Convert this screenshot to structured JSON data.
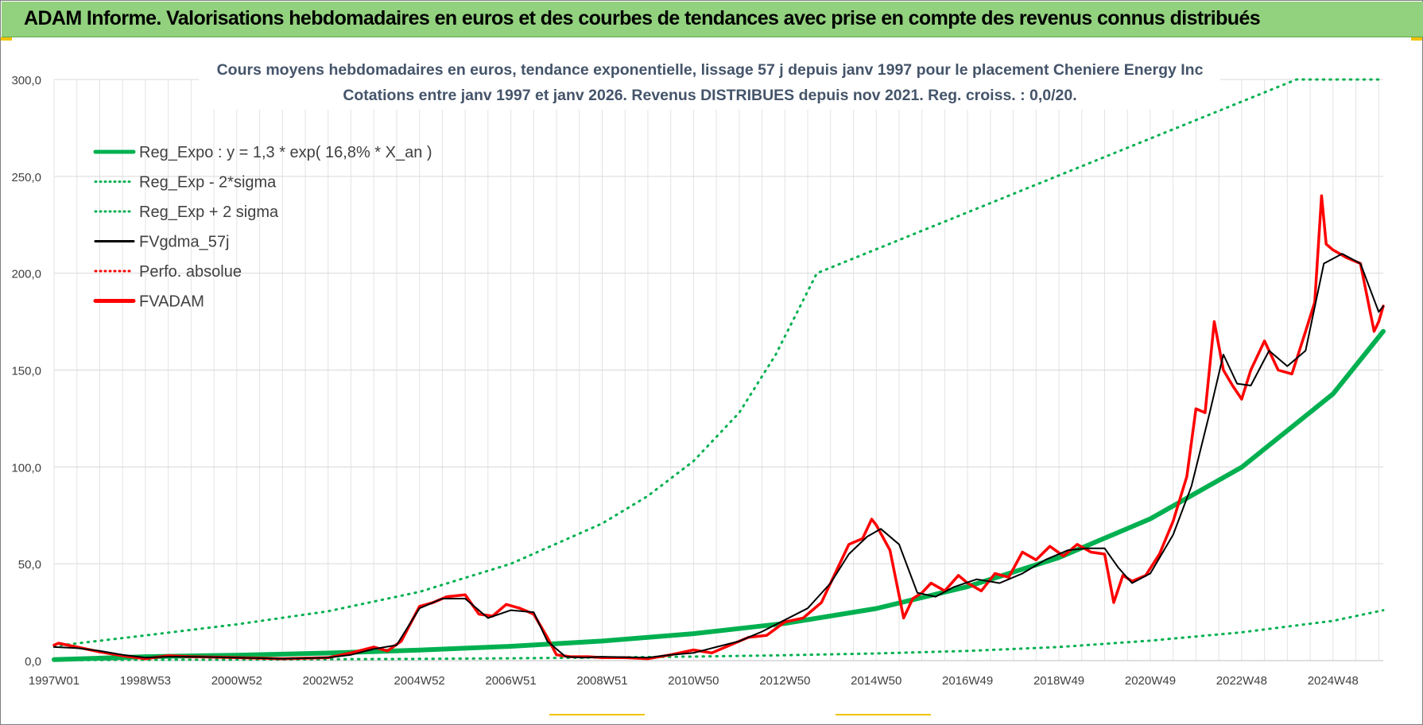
{
  "banner": {
    "title": "ADAM Informe. Valorisations hebdomadaires en euros et des courbes de tendances avec prise en compte des revenus connus distribués"
  },
  "colors": {
    "banner_bg": "#92d17e",
    "reg_green": "#00b050",
    "fv_black": "#000000",
    "fvadam_red": "#ff0000",
    "grid": "#d9d9d9"
  },
  "chart_data": {
    "type": "line",
    "title": "Cours moyens hebdomadaires en euros, tendance exponentielle, lissage 57 j depuis janv 1997 pour le placement Cheniere Energy Inc",
    "subtitle": "Cotations entre janv 1997 et janv 2026. Revenus DISTRIBUES depuis nov 2021. Reg. croiss. : 0,0/20.",
    "xlabel": "",
    "ylabel": "",
    "xlim": [
      1997.0,
      2026.1
    ],
    "ylim": [
      0,
      300
    ],
    "y_ticks": [
      "0,0",
      "50,0",
      "100,0",
      "150,0",
      "200,0",
      "250,0",
      "300,0"
    ],
    "x_ticks": [
      {
        "label": "1997W01",
        "t": 1997.0
      },
      {
        "label": "1998W53",
        "t": 1999.0
      },
      {
        "label": "2000W52",
        "t": 2001.0
      },
      {
        "label": "2002W52",
        "t": 2003.0
      },
      {
        "label": "2004W52",
        "t": 2005.0
      },
      {
        "label": "2006W51",
        "t": 2007.0
      },
      {
        "label": "2008W51",
        "t": 2009.0
      },
      {
        "label": "2010W50",
        "t": 2011.0
      },
      {
        "label": "2012W50",
        "t": 2013.0
      },
      {
        "label": "2014W50",
        "t": 2015.0
      },
      {
        "label": "2016W49",
        "t": 2017.0
      },
      {
        "label": "2018W49",
        "t": 2019.0
      },
      {
        "label": "2020W49",
        "t": 2021.0
      },
      {
        "label": "2022W48",
        "t": 2023.0
      },
      {
        "label": "2024W48",
        "t": 2025.0
      }
    ],
    "grid": true,
    "legend_position": "top-left",
    "legend": [
      {
        "name": "Reg_Expo : y = 1,3 * exp( 16,8% *  X_an )",
        "style": "solid-thick",
        "color": "#00b050"
      },
      {
        "name": "Reg_Exp - 2*sigma",
        "style": "dotted",
        "color": "#00b050"
      },
      {
        "name": "Reg_Exp + 2 sigma",
        "style": "dotted",
        "color": "#00b050"
      },
      {
        "name": "FVgdma_57j",
        "style": "solid",
        "color": "#000000"
      },
      {
        "name": "Perfo. absolue",
        "style": "dotted",
        "color": "#ff0000"
      },
      {
        "name": "FVADAM",
        "style": "solid-thick",
        "color": "#ff0000"
      }
    ],
    "series": [
      {
        "name": "Reg_Expo",
        "x": [
          1997.0,
          1999.0,
          2001.0,
          2003.0,
          2005.0,
          2007.0,
          2009.0,
          2011.0,
          2013.0,
          2015.0,
          2017.0,
          2019.0,
          2021.0,
          2023.0,
          2025.0,
          2026.1
        ],
        "y": [
          0.5,
          2.0,
          2.8,
          3.9,
          5.4,
          7.4,
          10.1,
          13.9,
          19.2,
          26.9,
          38.2,
          53.2,
          73.2,
          99.8,
          137.7,
          170.0
        ]
      },
      {
        "name": "Reg_Exp + 2 sigma",
        "x": [
          1997.0,
          1999.0,
          2001.0,
          2003.0,
          2005.0,
          2007.0,
          2009.0,
          2010.0,
          2011.0,
          2012.0,
          2012.8,
          2013.7,
          2024.2,
          2026.1
        ],
        "y": [
          7.5,
          13.0,
          18.7,
          25.5,
          35.5,
          50.0,
          70.8,
          85.0,
          103.0,
          128.0,
          158.0,
          200.0,
          300.0,
          300.0
        ]
      },
      {
        "name": "Reg_Exp - 2*sigma",
        "x": [
          1997.0,
          1999.0,
          2001.0,
          2003.0,
          2005.0,
          2007.0,
          2009.0,
          2011.0,
          2013.0,
          2015.0,
          2017.0,
          2019.0,
          2021.0,
          2023.0,
          2025.0,
          2026.1
        ],
        "y": [
          0.2,
          0.4,
          0.5,
          0.7,
          0.9,
          1.2,
          1.6,
          2.1,
          2.8,
          3.7,
          5.0,
          7.0,
          10.3,
          14.6,
          20.5,
          26.0
        ]
      },
      {
        "name": "FVgdma_57j",
        "x": [
          1997.0,
          1997.5,
          1998.0,
          1998.5,
          1999.0,
          1999.5,
          2000.0,
          2001.0,
          2002.0,
          2003.0,
          2003.5,
          2004.0,
          2004.5,
          2005.0,
          2005.5,
          2006.0,
          2006.5,
          2007.0,
          2007.5,
          2007.8,
          2008.2,
          2008.6,
          2009.0,
          2010.0,
          2010.5,
          2011.0,
          2011.5,
          2012.0,
          2012.5,
          2013.0,
          2013.5,
          2014.0,
          2014.4,
          2014.8,
          2015.1,
          2015.5,
          2015.9,
          2016.3,
          2016.7,
          2017.2,
          2017.7,
          2018.2,
          2018.7,
          2019.2,
          2019.6,
          2020.0,
          2020.3,
          2020.6,
          2021.0,
          2021.5,
          2021.9,
          2022.3,
          2022.6,
          2022.9,
          2023.2,
          2023.6,
          2024.0,
          2024.4,
          2024.8,
          2025.2,
          2025.6,
          2026.0,
          2026.1
        ],
        "y": [
          7.0,
          6.5,
          5.0,
          3.0,
          1.5,
          2.0,
          2.0,
          1.5,
          1.0,
          1.5,
          3.0,
          6.0,
          8.0,
          27.0,
          32.0,
          32.0,
          22.0,
          26.0,
          25.0,
          10.0,
          2.0,
          1.5,
          2.0,
          1.5,
          3.0,
          4.0,
          7.0,
          10.0,
          15.0,
          21.0,
          27.0,
          40.0,
          55.0,
          64.0,
          68.0,
          60.0,
          35.0,
          33.0,
          38.0,
          42.0,
          40.0,
          45.0,
          52.0,
          57.0,
          58.0,
          58.0,
          48.0,
          40.0,
          45.0,
          65.0,
          90.0,
          128.0,
          158.0,
          143.0,
          142.0,
          160.0,
          152.0,
          160.0,
          205.0,
          210.0,
          205.0,
          180.0,
          183.0
        ]
      },
      {
        "name": "FVADAM",
        "x": [
          1997.0,
          1997.1,
          1997.5,
          1998.0,
          1998.5,
          1999.0,
          1999.5,
          2000.0,
          2001.0,
          2002.0,
          2003.0,
          2003.5,
          2004.0,
          2004.3,
          2004.6,
          2005.0,
          2005.3,
          2005.6,
          2006.0,
          2006.3,
          2006.6,
          2006.9,
          2007.2,
          2007.5,
          2007.8,
          2008.0,
          2008.3,
          2008.7,
          2009.0,
          2009.5,
          2010.0,
          2010.5,
          2011.0,
          2011.4,
          2011.8,
          2012.2,
          2012.6,
          2013.0,
          2013.4,
          2013.8,
          2014.1,
          2014.4,
          2014.7,
          2014.9,
          2015.0,
          2015.3,
          2015.6,
          2015.8,
          2016.0,
          2016.2,
          2016.5,
          2016.8,
          2017.0,
          2017.3,
          2017.6,
          2017.9,
          2018.2,
          2018.5,
          2018.8,
          2019.1,
          2019.4,
          2019.7,
          2020.0,
          2020.2,
          2020.4,
          2020.6,
          2020.9,
          2021.2,
          2021.5,
          2021.8,
          2022.0,
          2022.2,
          2022.4,
          2022.6,
          2022.8,
          2023.0,
          2023.2,
          2023.5,
          2023.8,
          2024.1,
          2024.4,
          2024.6,
          2024.75,
          2024.85,
          2025.0,
          2025.3,
          2025.6,
          2025.9,
          2026.0,
          2026.1
        ],
        "y": [
          8.0,
          9.0,
          7.0,
          4.5,
          2.5,
          1.0,
          2.5,
          2.0,
          1.5,
          1.0,
          1.5,
          4.0,
          7.0,
          5.0,
          10.0,
          28.0,
          30.0,
          33.0,
          34.0,
          24.0,
          23.0,
          29.0,
          27.0,
          24.0,
          12.0,
          3.0,
          2.0,
          2.0,
          1.5,
          1.5,
          1.0,
          3.0,
          5.5,
          4.0,
          8.0,
          12.0,
          13.0,
          20.0,
          22.0,
          30.0,
          45.0,
          60.0,
          63.0,
          73.0,
          70.0,
          57.0,
          22.0,
          32.0,
          35.0,
          40.0,
          36.0,
          44.0,
          40.0,
          36.0,
          45.0,
          43.0,
          56.0,
          52.0,
          59.0,
          54.0,
          60.0,
          56.0,
          55.0,
          30.0,
          44.0,
          41.0,
          44.0,
          55.0,
          72.0,
          95.0,
          130.0,
          128.0,
          175.0,
          150.0,
          142.0,
          135.0,
          150.0,
          165.0,
          150.0,
          148.0,
          170.0,
          185.0,
          240.0,
          215.0,
          212.0,
          208.0,
          205.0,
          170.0,
          175.0,
          183.0
        ]
      }
    ]
  }
}
